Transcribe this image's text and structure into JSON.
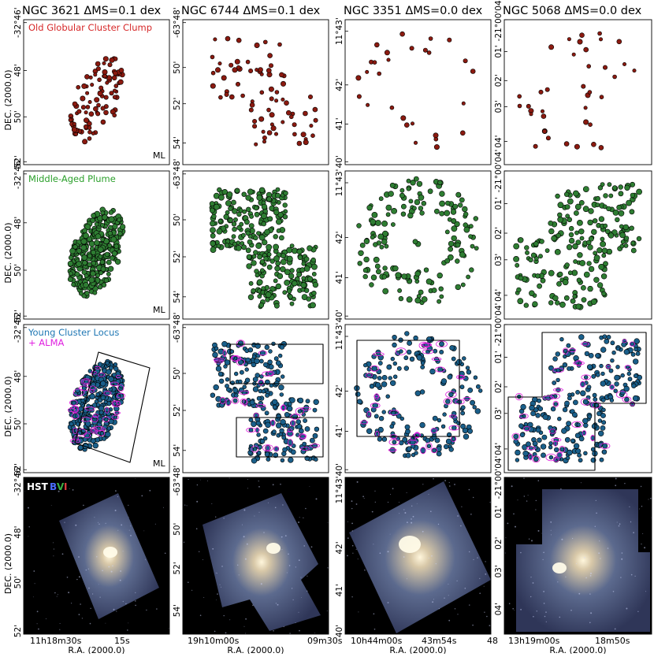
{
  "columns": [
    {
      "title": "NGC 3621  ΔMS=0.1 dex",
      "dec_ticks": [
        "-32°46'",
        "48'",
        "50'",
        "52'"
      ],
      "ra_ticks": [
        "11h18m30s",
        "15s"
      ],
      "hst_seed": 11,
      "hst_shape": "spiral1"
    },
    {
      "title": "NGC 6744  ΔMS=0.1 dex",
      "dec_ticks": [
        "-63°48'",
        "50'",
        "52'",
        "54'"
      ],
      "ra_ticks": [
        "19h10m00s",
        "09m30s"
      ],
      "hst_seed": 22,
      "hst_shape": "twobox"
    },
    {
      "title": "NGC 3351  ΔMS=0.0 dex",
      "dec_ticks": [
        "11°43'",
        "42'",
        "41'",
        "40'"
      ],
      "ra_ticks": [
        "10h44m00s",
        "43m54s",
        "48"
      ],
      "hst_seed": 33,
      "hst_shape": "ring"
    },
    {
      "title": "NGC 5068  ΔMS=0.0 dex",
      "dec_ticks": [
        "-21°00'04'",
        "01'",
        "02'",
        "03'",
        "04'"
      ],
      "ra_ticks": [
        "13h19m00s",
        "18m50s"
      ],
      "hst_seed": 44,
      "hst_shape": "stepped"
    }
  ],
  "rows": [
    {
      "label": "Old Globular Cluster Clump",
      "label_color": "#d62728",
      "dot_color": "#8b1a10",
      "ml": "ML"
    },
    {
      "label": "Middle-Aged Plume",
      "label_color": "#2ca02c",
      "dot_color": "#2e7d32",
      "ml": "ML"
    },
    {
      "label": "Young Cluster Locus",
      "label2": "+ ALMA",
      "label_color": "#1f77b4",
      "label2_color": "#e020e0",
      "dot_color": "#1a5f8a",
      "ml": "ML"
    },
    {
      "label": "HST",
      "bands": [
        "B",
        "V",
        "I"
      ],
      "band_colors": [
        "#4a6cff",
        "#3cb043",
        "#e04040"
      ]
    }
  ],
  "axis": {
    "dec_label": "DEC. (2000.0)",
    "ra_label": "R.A. (2000.0)"
  }
}
